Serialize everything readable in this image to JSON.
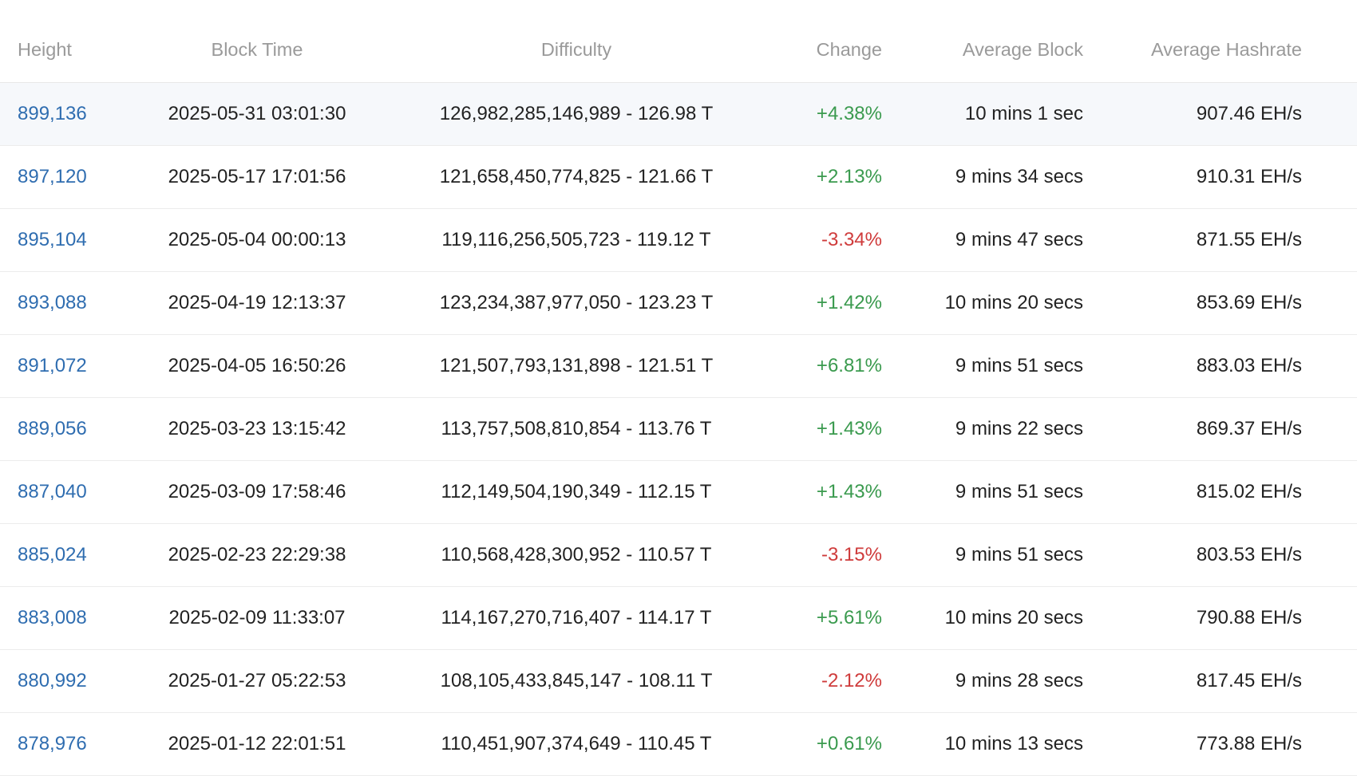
{
  "columns": {
    "height": "Height",
    "block_time": "Block Time",
    "difficulty": "Difficulty",
    "change": "Change",
    "average_block": "Average Block",
    "average_hashrate": "Average Hashrate"
  },
  "colors": {
    "link": "#2f6db0",
    "positive": "#3a9a4e",
    "negative": "#cf3b3b",
    "row_highlight": "#f6f8fb"
  },
  "rows": [
    {
      "height": "899,136",
      "block_time": "2025-05-31 03:01:30",
      "difficulty": "126,982,285,146,989 - 126.98 T",
      "change": "+4.38%",
      "average_block": "10 mins 1 sec",
      "average_hashrate": "907.46 EH/s"
    },
    {
      "height": "897,120",
      "block_time": "2025-05-17 17:01:56",
      "difficulty": "121,658,450,774,825 - 121.66 T",
      "change": "+2.13%",
      "average_block": "9 mins 34 secs",
      "average_hashrate": "910.31 EH/s"
    },
    {
      "height": "895,104",
      "block_time": "2025-05-04 00:00:13",
      "difficulty": "119,116,256,505,723 - 119.12 T",
      "change": "-3.34%",
      "average_block": "9 mins 47 secs",
      "average_hashrate": "871.55 EH/s"
    },
    {
      "height": "893,088",
      "block_time": "2025-04-19 12:13:37",
      "difficulty": "123,234,387,977,050 - 123.23 T",
      "change": "+1.42%",
      "average_block": "10 mins 20 secs",
      "average_hashrate": "853.69 EH/s"
    },
    {
      "height": "891,072",
      "block_time": "2025-04-05 16:50:26",
      "difficulty": "121,507,793,131,898 - 121.51 T",
      "change": "+6.81%",
      "average_block": "9 mins 51 secs",
      "average_hashrate": "883.03 EH/s"
    },
    {
      "height": "889,056",
      "block_time": "2025-03-23 13:15:42",
      "difficulty": "113,757,508,810,854 - 113.76 T",
      "change": "+1.43%",
      "average_block": "9 mins 22 secs",
      "average_hashrate": "869.37 EH/s"
    },
    {
      "height": "887,040",
      "block_time": "2025-03-09 17:58:46",
      "difficulty": "112,149,504,190,349 - 112.15 T",
      "change": "+1.43%",
      "average_block": "9 mins 51 secs",
      "average_hashrate": "815.02 EH/s"
    },
    {
      "height": "885,024",
      "block_time": "2025-02-23 22:29:38",
      "difficulty": "110,568,428,300,952 - 110.57 T",
      "change": "-3.15%",
      "average_block": "9 mins 51 secs",
      "average_hashrate": "803.53 EH/s"
    },
    {
      "height": "883,008",
      "block_time": "2025-02-09 11:33:07",
      "difficulty": "114,167,270,716,407 - 114.17 T",
      "change": "+5.61%",
      "average_block": "10 mins 20 secs",
      "average_hashrate": "790.88 EH/s"
    },
    {
      "height": "880,992",
      "block_time": "2025-01-27 05:22:53",
      "difficulty": "108,105,433,845,147 - 108.11 T",
      "change": "-2.12%",
      "average_block": "9 mins 28 secs",
      "average_hashrate": "817.45 EH/s"
    },
    {
      "height": "878,976",
      "block_time": "2025-01-12 22:01:51",
      "difficulty": "110,451,907,374,649 - 110.45 T",
      "change": "+0.61%",
      "average_block": "10 mins 13 secs",
      "average_hashrate": "773.88 EH/s"
    }
  ]
}
